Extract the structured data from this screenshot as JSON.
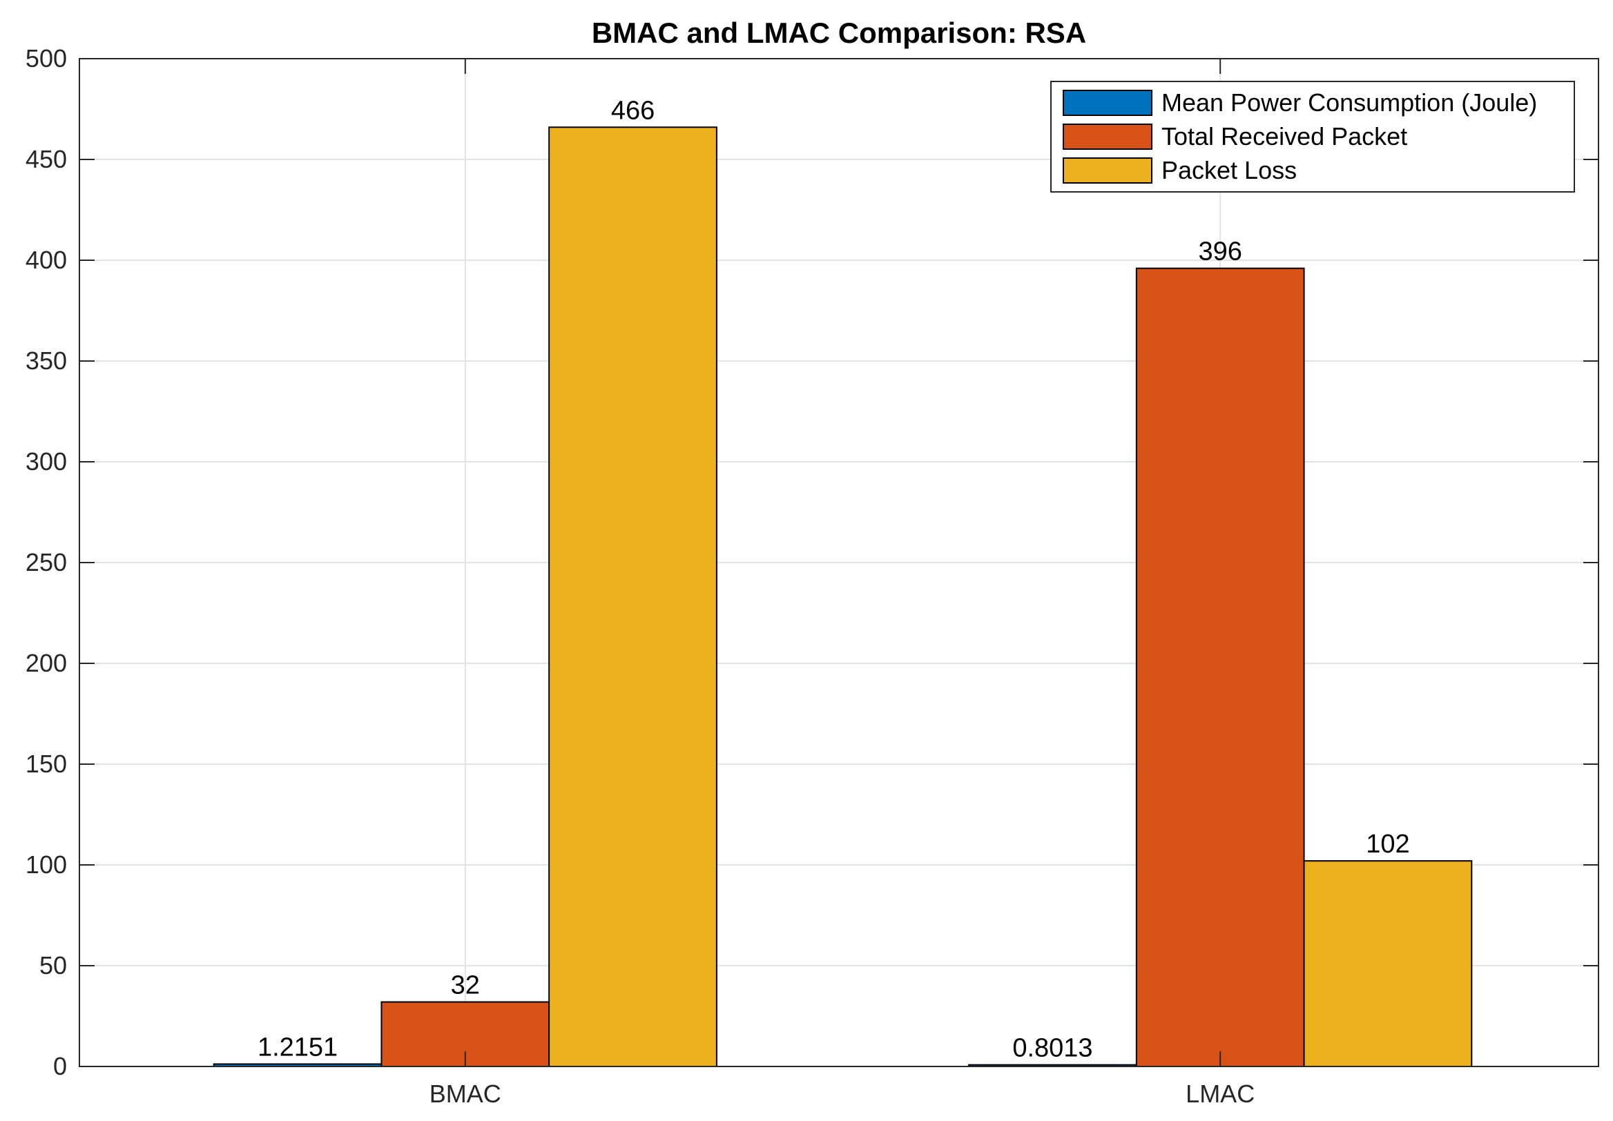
{
  "chart_data": {
    "type": "bar",
    "title": "BMAC and LMAC Comparison: RSA",
    "xlabel": "",
    "ylabel": "",
    "categories": [
      "BMAC",
      "LMAC"
    ],
    "series": [
      {
        "name": "Mean Power Consumption (Joule)",
        "color": "#0072BD",
        "values": [
          1.2151,
          0.8013
        ],
        "labels": [
          "1.2151",
          "0.8013"
        ]
      },
      {
        "name": "Total Received Packet",
        "color": "#D95319",
        "values": [
          32,
          396
        ],
        "labels": [
          "32",
          "396"
        ]
      },
      {
        "name": "Packet Loss",
        "color": "#EDB120",
        "values": [
          466,
          102
        ],
        "labels": [
          "466",
          "102"
        ]
      }
    ],
    "ylim": [
      0,
      500
    ],
    "yticks": [
      0,
      50,
      100,
      150,
      200,
      250,
      300,
      350,
      400,
      450,
      500
    ],
    "grid": true,
    "legend_position": "top-right"
  }
}
